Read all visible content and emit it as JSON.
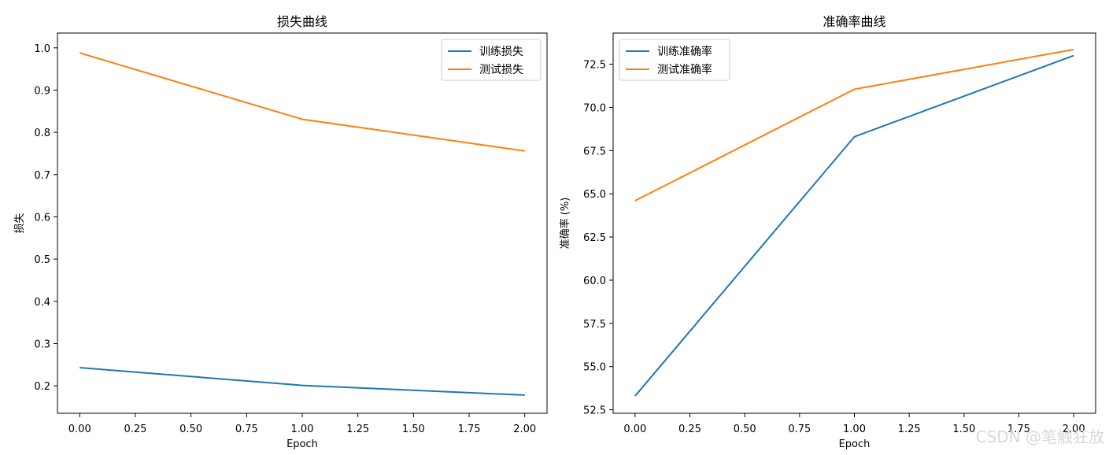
{
  "chart_data": [
    {
      "type": "line",
      "title": "损失曲线",
      "xlabel": "Epoch",
      "ylabel": "损失",
      "xlim": [
        -0.1,
        2.1
      ],
      "ylim": [
        0.135,
        1.035
      ],
      "xticks": [
        0.0,
        0.25,
        0.5,
        0.75,
        1.0,
        1.25,
        1.5,
        1.75,
        2.0
      ],
      "xtick_labels": [
        "0.00",
        "0.25",
        "0.50",
        "0.75",
        "1.00",
        "1.25",
        "1.50",
        "1.75",
        "2.00"
      ],
      "yticks": [
        0.2,
        0.3,
        0.4,
        0.5,
        0.6,
        0.7,
        0.8,
        0.9,
        1.0
      ],
      "ytick_labels": [
        "0.2",
        "0.3",
        "0.4",
        "0.5",
        "0.6",
        "0.7",
        "0.8",
        "0.9",
        "1.0"
      ],
      "legend_position": "top-right",
      "grid": false,
      "x": [
        0,
        1,
        2
      ],
      "series": [
        {
          "name": "训练损失",
          "values": [
            0.243,
            0.201,
            0.178
          ],
          "color": "#1f77b4"
        },
        {
          "name": "测试损失",
          "values": [
            0.988,
            0.831,
            0.756
          ],
          "color": "#ff7f0e"
        }
      ]
    },
    {
      "type": "line",
      "title": "准确率曲线",
      "xlabel": "Epoch",
      "ylabel": "准确率 (%)",
      "xlim": [
        -0.1,
        2.1
      ],
      "ylim": [
        52.3,
        74.3
      ],
      "xticks": [
        0.0,
        0.25,
        0.5,
        0.75,
        1.0,
        1.25,
        1.5,
        1.75,
        2.0
      ],
      "xtick_labels": [
        "0.00",
        "0.25",
        "0.50",
        "0.75",
        "1.00",
        "1.25",
        "1.50",
        "1.75",
        "2.00"
      ],
      "yticks": [
        52.5,
        55.0,
        57.5,
        60.0,
        62.5,
        65.0,
        67.5,
        70.0,
        72.5
      ],
      "ytick_labels": [
        "52.5",
        "55.0",
        "57.5",
        "60.0",
        "62.5",
        "65.0",
        "67.5",
        "70.0",
        "72.5"
      ],
      "legend_position": "top-left",
      "grid": false,
      "x": [
        0,
        1,
        2
      ],
      "series": [
        {
          "name": "训练准确率",
          "values": [
            53.3,
            68.3,
            73.0
          ],
          "color": "#1f77b4"
        },
        {
          "name": "测试准确率",
          "values": [
            64.6,
            71.05,
            73.35
          ],
          "color": "#ff7f0e"
        }
      ]
    }
  ],
  "watermark": "CSDN @笔触狂放"
}
